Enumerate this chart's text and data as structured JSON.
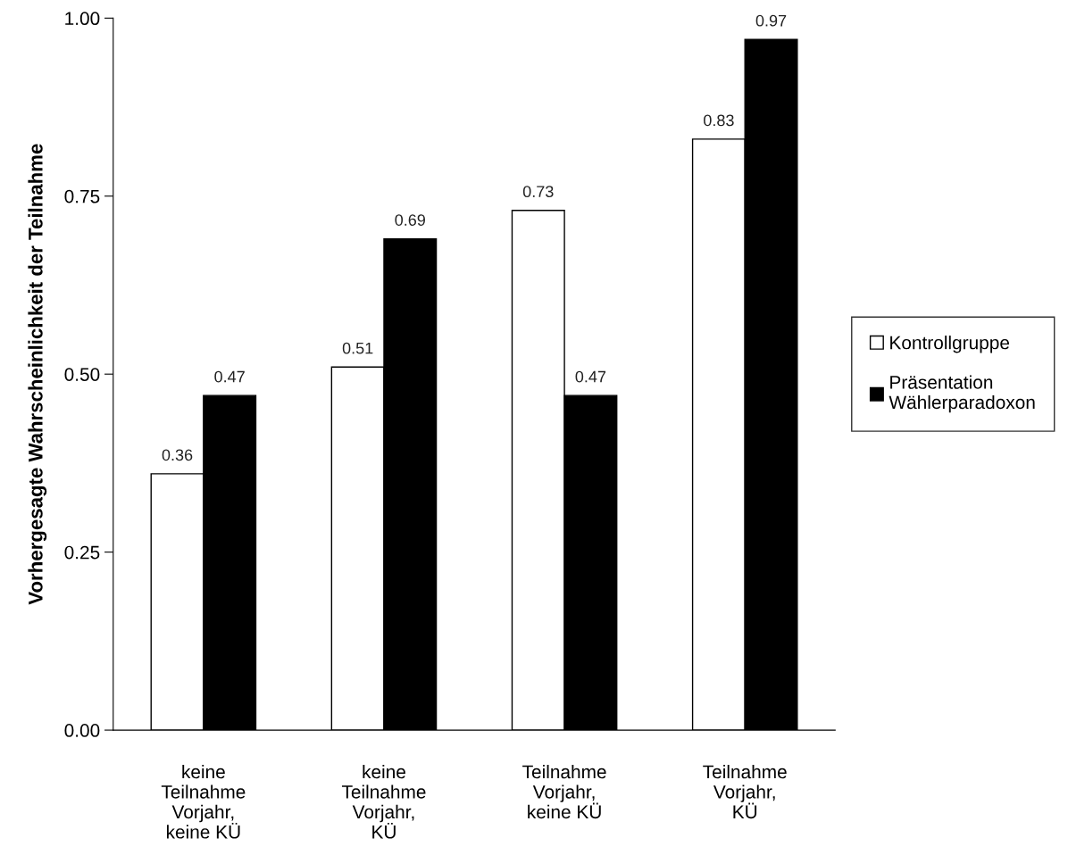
{
  "chart_data": {
    "type": "bar",
    "ylabel": "Vorhergesagte Wahrscheinlichkeit der Teilnahme",
    "categories": [
      "keine\nTeilnahme\nVorjahr,\nkeine KÜ",
      "keine\nTeilnahme\nVorjahr,\nKÜ",
      "Teilnahme\nVorjahr,\nkeine KÜ",
      "Teilnahme\nVorjahr,\nKÜ"
    ],
    "series": [
      {
        "name": "Kontrollgruppe",
        "color": "#ffffff",
        "values": [
          0.36,
          0.51,
          0.73,
          0.83
        ]
      },
      {
        "name": "Präsentation\nWählerparadoxon",
        "color": "#000000",
        "values": [
          0.47,
          0.69,
          0.47,
          0.97
        ]
      }
    ],
    "ylim": [
      0,
      1
    ],
    "yticks": [
      {
        "value": 0,
        "label": "0.00"
      },
      {
        "value": 0.25,
        "label": "0.25"
      },
      {
        "value": 0.5,
        "label": "0.50"
      },
      {
        "value": 0.75,
        "label": "0.75"
      },
      {
        "value": 1,
        "label": "1.00"
      }
    ],
    "data_labels": true,
    "legend": "right",
    "grid": false
  }
}
